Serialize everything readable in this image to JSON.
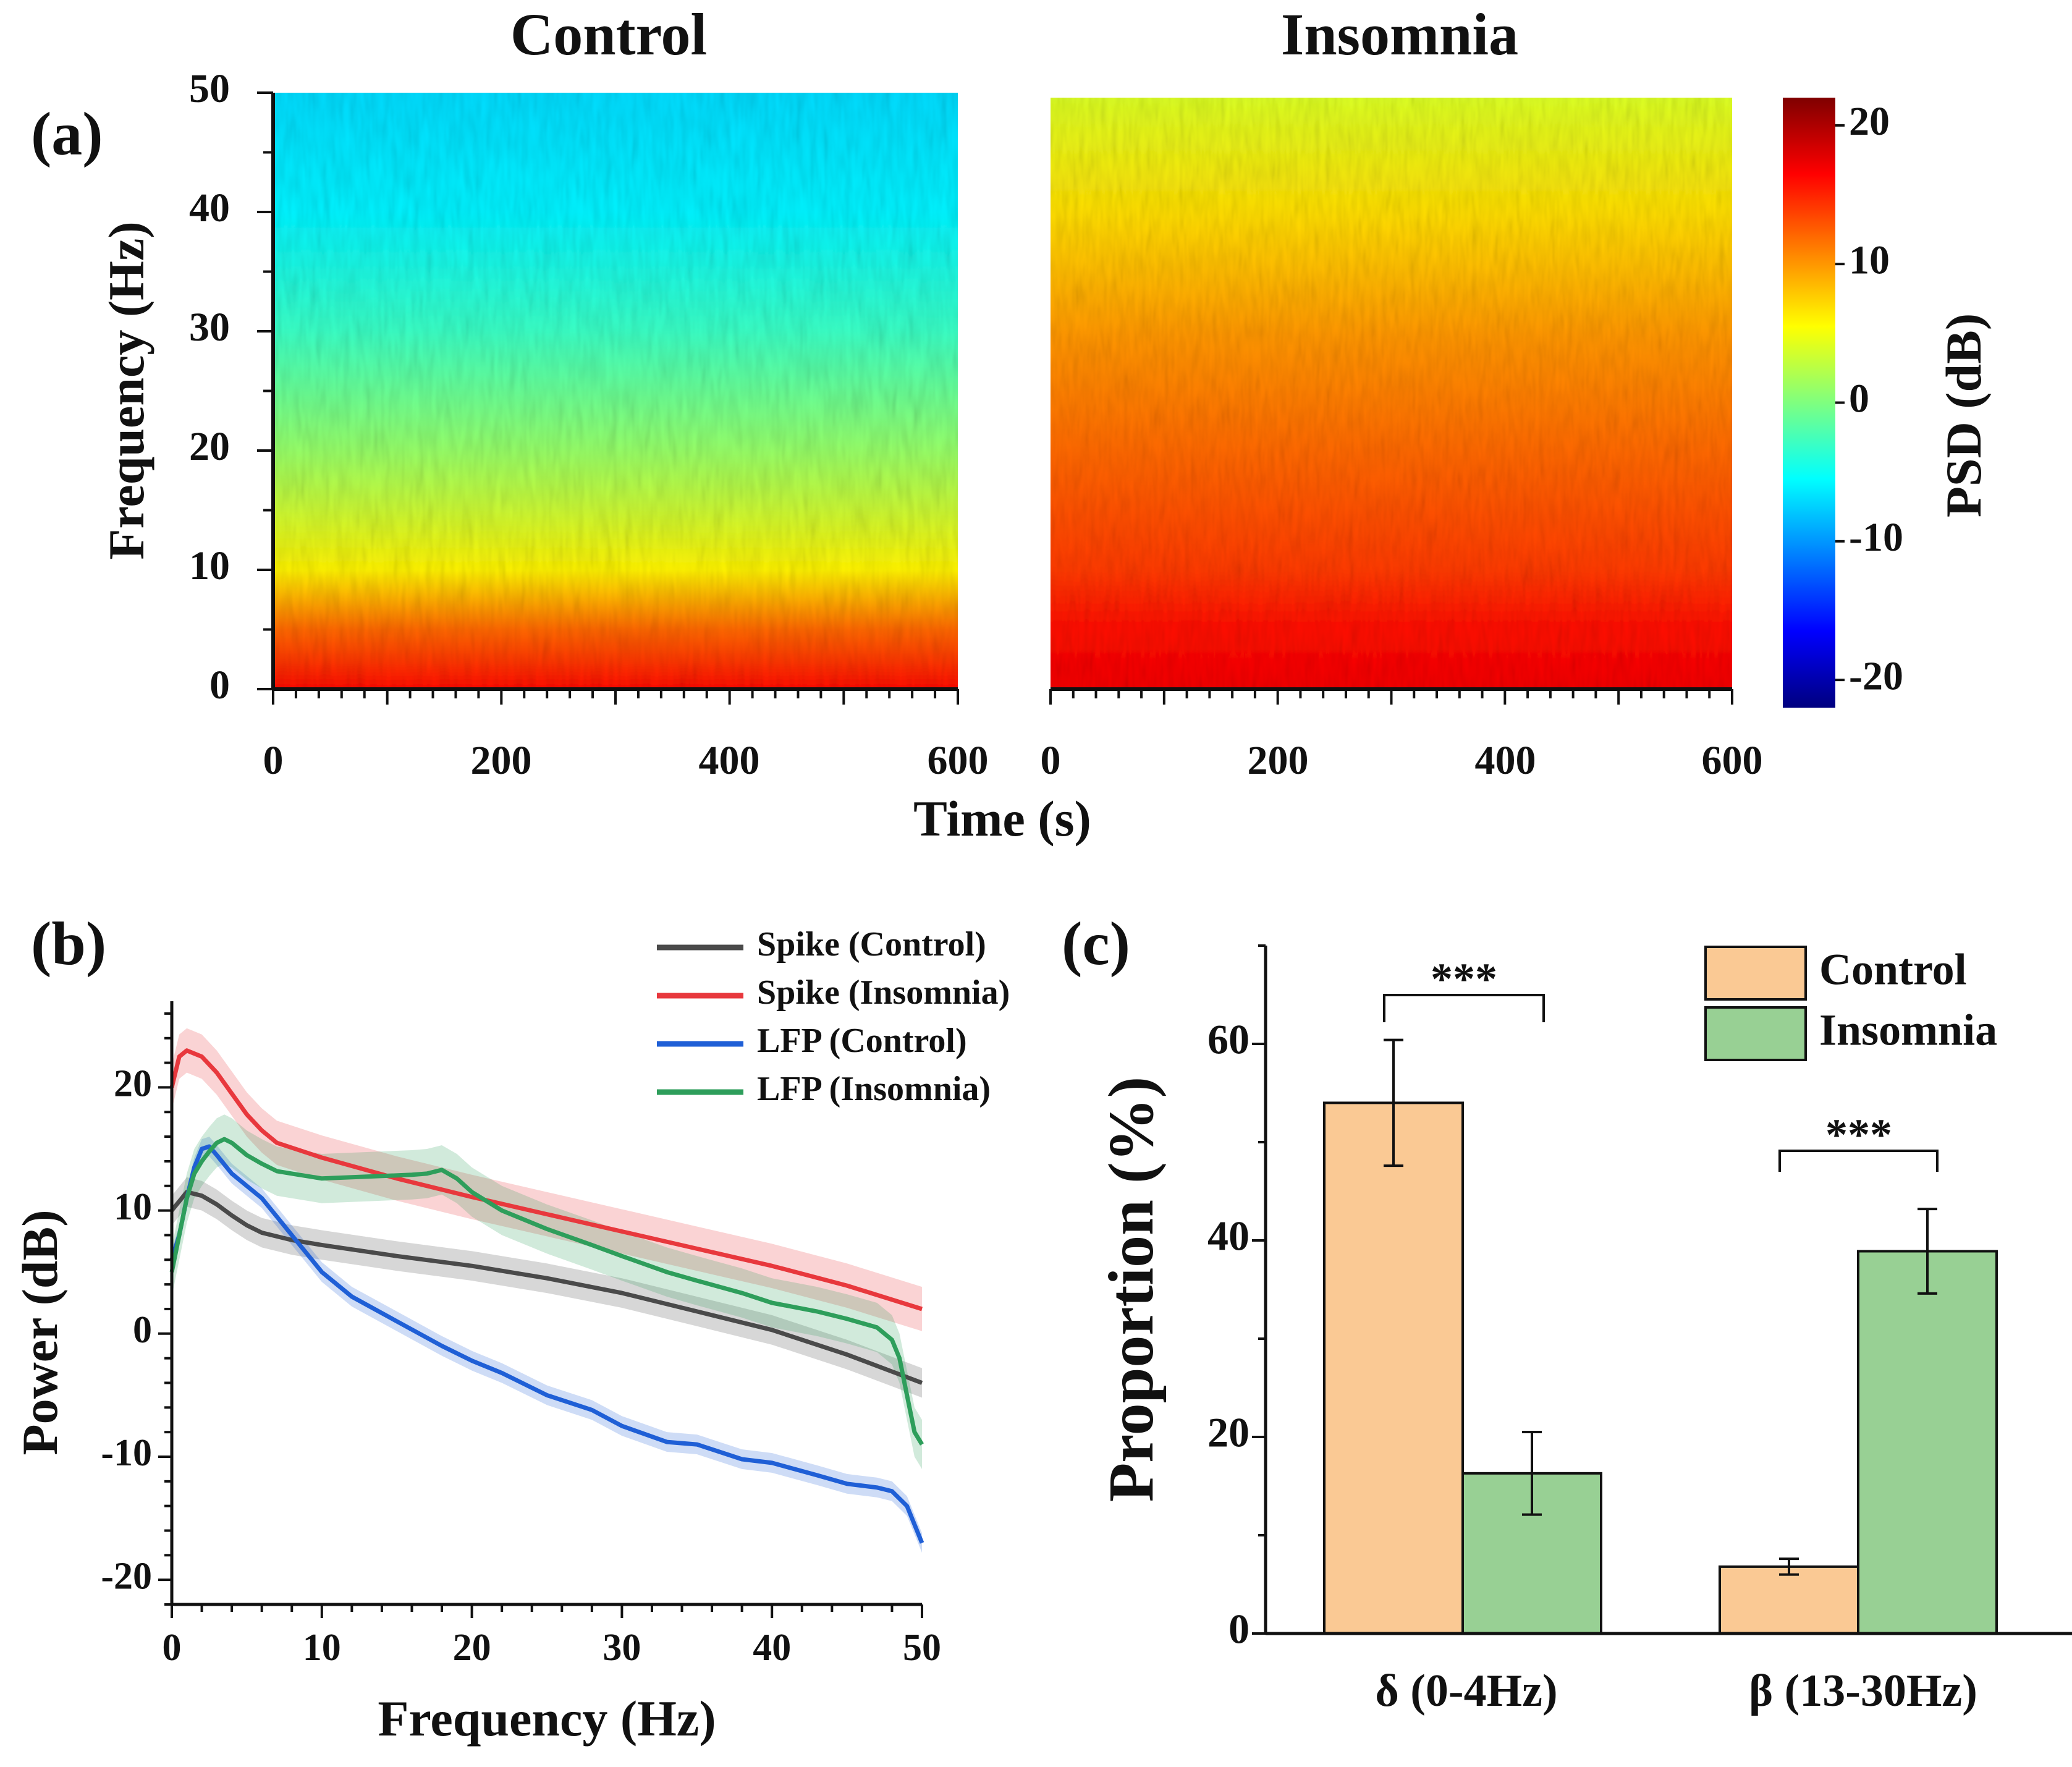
{
  "panels": {
    "a": "(a)",
    "b": "(b)",
    "c": "(c)"
  },
  "colors": {
    "spike_control": "#4a4a4a",
    "spike_insomnia": "#e8383d",
    "lfp_control": "#1f5fd6",
    "lfp_insomnia": "#2e9e5b",
    "bar_control": "#fac994",
    "bar_insomnia": "#98d094"
  },
  "chart_data": [
    {
      "id": "a",
      "type": "heatmap",
      "panels": [
        {
          "title": "Control",
          "profile": "control"
        },
        {
          "title": "Insomnia",
          "profile": "insomnia"
        }
      ],
      "xlabel": "Time (s)",
      "ylabel": "Frequency (Hz)",
      "xlim": [
        0,
        600
      ],
      "ylim": [
        0,
        50
      ],
      "xticks": [
        "0",
        "200",
        "400",
        "600"
      ],
      "yticks": [
        "0",
        "10",
        "20",
        "30",
        "40",
        "50"
      ],
      "colorbar": {
        "label": "PSD (dB)",
        "range": [
          -22,
          22
        ],
        "ticks": [
          "20",
          "10",
          "0",
          "-10",
          "-20"
        ],
        "tick_values": [
          20,
          10,
          0,
          -10,
          -20
        ]
      },
      "mean_psd_db_by_frequency": {
        "frequency_hz": [
          0,
          5,
          10,
          20,
          30,
          40,
          50
        ],
        "control": [
          16,
          12,
          6,
          1,
          -3,
          -6,
          -7
        ],
        "insomnia": [
          17,
          16,
          14,
          12,
          10,
          7,
          4
        ]
      }
    },
    {
      "id": "b",
      "type": "line",
      "xlabel": "Frequency (Hz)",
      "ylabel": "Power (dB)",
      "xlim": [
        0,
        50
      ],
      "ylim": [
        -22,
        27
      ],
      "xticks": [
        "0",
        "10",
        "20",
        "30",
        "40",
        "50"
      ],
      "yticks": [
        "20",
        "10",
        "0",
        "-10",
        "-20"
      ],
      "ytick_values": [
        20,
        10,
        0,
        -10,
        -20
      ],
      "legend": "top-right",
      "series": [
        {
          "name": "Spike (Control)",
          "color_key": "spike_control",
          "band": 1.2,
          "x": [
            0,
            1,
            2,
            3,
            4,
            5,
            6,
            8,
            10,
            15,
            20,
            25,
            30,
            35,
            40,
            45,
            50
          ],
          "y": [
            10,
            11.5,
            11.2,
            10.5,
            9.6,
            8.8,
            8.2,
            7.6,
            7.2,
            6.3,
            5.5,
            4.5,
            3.3,
            1.8,
            0.3,
            -1.7,
            -4
          ]
        },
        {
          "name": "Spike (Insomnia)",
          "color_key": "spike_insomnia",
          "band": 1.8,
          "x": [
            0,
            0.5,
            1,
            2,
            3,
            4,
            5,
            6,
            7,
            10,
            15,
            20,
            25,
            30,
            35,
            40,
            45,
            50
          ],
          "y": [
            20,
            22.5,
            23,
            22.5,
            21.2,
            19.5,
            17.8,
            16.5,
            15.5,
            14.3,
            12.6,
            11.1,
            9.7,
            8.3,
            6.9,
            5.5,
            3.9,
            2
          ]
        },
        {
          "name": "LFP (Control)",
          "color_key": "lfp_control",
          "band": 0.8,
          "x": [
            0,
            0.5,
            1,
            1.5,
            2,
            2.5,
            3,
            4,
            5,
            6,
            7,
            8,
            9,
            10,
            12,
            15,
            18,
            20,
            22,
            25,
            28,
            30,
            33,
            35,
            38,
            40,
            43,
            45,
            47,
            48,
            49,
            50
          ],
          "y": [
            6,
            8,
            11,
            13.5,
            15,
            15.2,
            14.5,
            13,
            12,
            11,
            9.5,
            8,
            6.5,
            5,
            3,
            1,
            -1,
            -2.2,
            -3.2,
            -5,
            -6.2,
            -7.5,
            -8.8,
            -9,
            -10.2,
            -10.5,
            -11.5,
            -12.2,
            -12.5,
            -12.8,
            -14,
            -17
          ]
        },
        {
          "name": "LFP (Insomnia)",
          "color_key": "lfp_insomnia",
          "band": 2,
          "x": [
            0,
            0.5,
            1,
            1.5,
            2,
            2.5,
            3,
            3.5,
            4,
            5,
            6,
            7,
            8,
            10,
            12,
            14,
            16,
            17,
            18,
            19,
            20,
            22,
            25,
            28,
            30,
            33,
            35,
            38,
            40,
            43,
            45,
            47,
            48,
            48.5,
            49,
            49.5,
            50
          ],
          "y": [
            5,
            8,
            11,
            13,
            14,
            14.8,
            15.5,
            15.8,
            15.5,
            14.5,
            13.8,
            13.2,
            13,
            12.6,
            12.7,
            12.8,
            12.9,
            13,
            13.3,
            12.6,
            11.5,
            10,
            8.5,
            7.2,
            6.3,
            5,
            4.3,
            3.3,
            2.5,
            1.8,
            1.2,
            0.5,
            -0.5,
            -2,
            -5,
            -8,
            -9
          ]
        }
      ]
    },
    {
      "id": "c",
      "type": "bar",
      "categories": [
        "δ (0-4Hz)",
        "β (13-30Hz)"
      ],
      "ylabel": "Proportion (%)",
      "ylim": [
        0,
        70
      ],
      "yticks": [
        "0",
        "20",
        "40",
        "60"
      ],
      "ytick_values": [
        0,
        20,
        40,
        60
      ],
      "legend": "top-right",
      "series": [
        {
          "name": "Control",
          "color_key": "bar_control",
          "values": [
            54,
            6.8
          ],
          "errors": [
            6.4,
            0.8
          ]
        },
        {
          "name": "Insomnia",
          "color_key": "bar_insomnia",
          "values": [
            16.3,
            38.9
          ],
          "errors": [
            4.2,
            4.3
          ]
        }
      ],
      "significance": [
        "***",
        "***"
      ]
    }
  ]
}
